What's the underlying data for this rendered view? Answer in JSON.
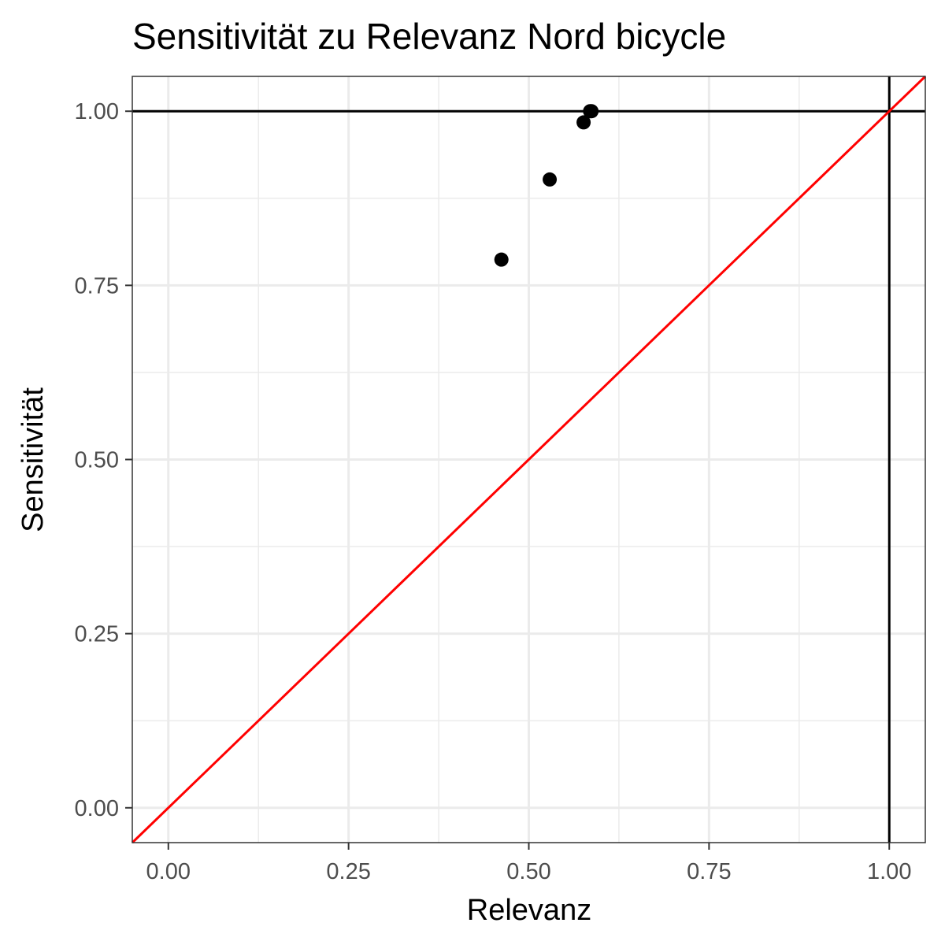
{
  "chart_data": {
    "type": "scatter",
    "title": "Sensitivität zu Relevanz Nord bicycle",
    "xlabel": "Relevanz",
    "ylabel": "Sensitivität",
    "xlim": [
      -0.05,
      1.05
    ],
    "ylim": [
      -0.05,
      1.05
    ],
    "x_ticks": [
      0,
      0.25,
      0.5,
      0.75,
      1
    ],
    "x_tick_labels": [
      "0.00",
      "0.25",
      "0.50",
      "0.75",
      "1.00"
    ],
    "y_ticks": [
      0,
      0.25,
      0.5,
      0.75,
      1
    ],
    "y_tick_labels": [
      "0.00",
      "0.25",
      "0.50",
      "0.75",
      "1.00"
    ],
    "grid": true,
    "points": [
      {
        "x": 0.462,
        "y": 0.787
      },
      {
        "x": 0.529,
        "y": 0.902
      },
      {
        "x": 0.576,
        "y": 0.984
      },
      {
        "x": 0.585,
        "y": 1.0
      },
      {
        "x": 0.587,
        "y": 1.0
      }
    ],
    "reference_lines": [
      {
        "kind": "horizontal",
        "y": 1.0,
        "color": "#000000"
      },
      {
        "kind": "vertical",
        "x": 1.0,
        "color": "#000000"
      },
      {
        "kind": "diagonal",
        "slope": 1,
        "intercept": 0,
        "color": "#ff0000"
      }
    ],
    "colors": {
      "points": "#000000",
      "diagonal": "#ff0000",
      "grid": "#ebebeb",
      "panel_border": "#333333",
      "tick_label": "#4d4d4d"
    }
  }
}
